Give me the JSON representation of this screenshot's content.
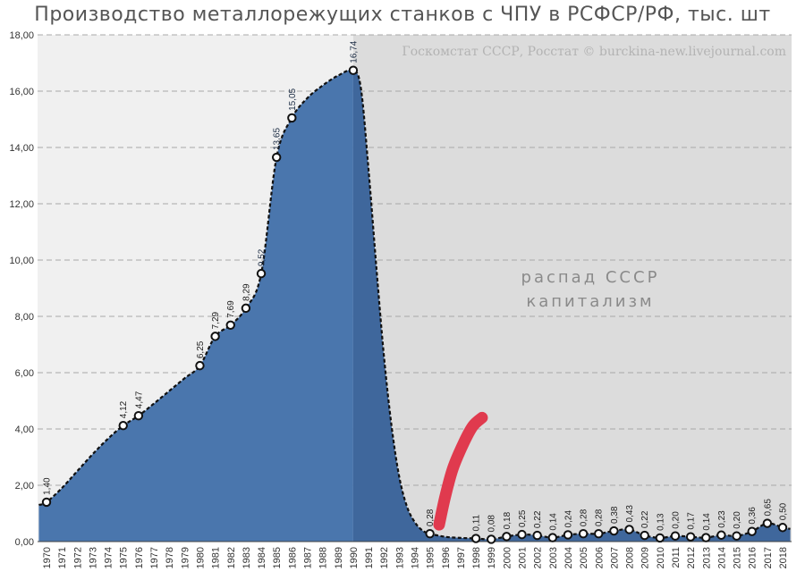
{
  "chart_data": {
    "type": "area",
    "title": "Производство металлорежущих станков с ЧПУ в РСФСР/РФ, тыс. шт",
    "source": "Госкомстат СССР, Росстат © burckina-new.livejournal.com",
    "annotations": [
      "распад СССР",
      "капитализм"
    ],
    "ylim": [
      0,
      18
    ],
    "yticks": [
      "0,00",
      "2,00",
      "4,00",
      "6,00",
      "8,00",
      "10,00",
      "12,00",
      "14,00",
      "16,00",
      "18,00"
    ],
    "grid": true,
    "x": [
      "1970",
      "1971",
      "1972",
      "1973",
      "1974",
      "1975",
      "1976",
      "1977",
      "1978",
      "1979",
      "1980",
      "1981",
      "1982",
      "1983",
      "1984",
      "1985",
      "1986",
      "1987",
      "1988",
      "1989",
      "1990",
      "1991",
      "1992",
      "1993",
      "1994",
      "1995",
      "1996",
      "1997",
      "1998",
      "1999",
      "2000",
      "2001",
      "2002",
      "2003",
      "2004",
      "2005",
      "2006",
      "2007",
      "2008",
      "2009",
      "2010",
      "2011",
      "2012",
      "2013",
      "2014",
      "2015",
      "2016",
      "2017",
      "2018"
    ],
    "points": [
      {
        "year": "1970",
        "value": 1.4,
        "label": "1,40"
      },
      {
        "year": "1975",
        "value": 4.12,
        "label": "4,12"
      },
      {
        "year": "1976",
        "value": 4.47,
        "label": "4,47"
      },
      {
        "year": "1980",
        "value": 6.25,
        "label": "6,25"
      },
      {
        "year": "1981",
        "value": 7.29,
        "label": "7,29"
      },
      {
        "year": "1982",
        "value": 7.69,
        "label": "7,69"
      },
      {
        "year": "1983",
        "value": 8.29,
        "label": "8,29"
      },
      {
        "year": "1984",
        "value": 9.52,
        "label": "9,52"
      },
      {
        "year": "1985",
        "value": 13.65,
        "label": "13,65"
      },
      {
        "year": "1986",
        "value": 15.05,
        "label": "15,05"
      },
      {
        "year": "1990",
        "value": 16.74,
        "label": "16,74"
      },
      {
        "year": "1995",
        "value": 0.28,
        "label": "0,28"
      },
      {
        "year": "1998",
        "value": 0.11,
        "label": "0,11"
      },
      {
        "year": "1999",
        "value": 0.08,
        "label": "0,08"
      },
      {
        "year": "2000",
        "value": 0.18,
        "label": "0,18"
      },
      {
        "year": "2001",
        "value": 0.25,
        "label": "0,25"
      },
      {
        "year": "2002",
        "value": 0.22,
        "label": "0,22"
      },
      {
        "year": "2003",
        "value": 0.14,
        "label": "0,14"
      },
      {
        "year": "2004",
        "value": 0.24,
        "label": "0,24"
      },
      {
        "year": "2005",
        "value": 0.28,
        "label": "0,28"
      },
      {
        "year": "2006",
        "value": 0.28,
        "label": "0,28"
      },
      {
        "year": "2007",
        "value": 0.38,
        "label": "0,38"
      },
      {
        "year": "2008",
        "value": 0.43,
        "label": "0,43"
      },
      {
        "year": "2009",
        "value": 0.22,
        "label": "0,22"
      },
      {
        "year": "2010",
        "value": 0.13,
        "label": "0,13"
      },
      {
        "year": "2011",
        "value": 0.2,
        "label": "0,20"
      },
      {
        "year": "2012",
        "value": 0.17,
        "label": "0,17"
      },
      {
        "year": "2013",
        "value": 0.14,
        "label": "0,14"
      },
      {
        "year": "2014",
        "value": 0.23,
        "label": "0,23"
      },
      {
        "year": "2015",
        "value": 0.2,
        "label": "0,20"
      },
      {
        "year": "2016",
        "value": 0.36,
        "label": "0,36"
      },
      {
        "year": "2017",
        "value": 0.65,
        "label": "0,65"
      },
      {
        "year": "2018",
        "value": 0.5,
        "label": "0,50"
      }
    ],
    "curve": [
      {
        "year": 1969.5,
        "value": 1.3
      },
      {
        "year": 1970,
        "value": 1.4
      },
      {
        "year": 1971,
        "value": 1.9
      },
      {
        "year": 1972,
        "value": 2.5
      },
      {
        "year": 1973,
        "value": 3.1
      },
      {
        "year": 1974,
        "value": 3.65
      },
      {
        "year": 1975,
        "value": 4.12
      },
      {
        "year": 1976,
        "value": 4.47
      },
      {
        "year": 1977,
        "value": 4.9
      },
      {
        "year": 1978,
        "value": 5.35
      },
      {
        "year": 1979,
        "value": 5.8
      },
      {
        "year": 1980,
        "value": 6.25
      },
      {
        "year": 1981,
        "value": 7.29
      },
      {
        "year": 1982,
        "value": 7.69
      },
      {
        "year": 1983,
        "value": 8.29
      },
      {
        "year": 1984,
        "value": 9.52
      },
      {
        "year": 1985,
        "value": 13.65
      },
      {
        "year": 1986,
        "value": 15.05
      },
      {
        "year": 1987,
        "value": 15.75
      },
      {
        "year": 1988,
        "value": 16.2
      },
      {
        "year": 1989,
        "value": 16.55
      },
      {
        "year": 1990,
        "value": 16.74
      },
      {
        "year": 1990.5,
        "value": 16.1
      },
      {
        "year": 1991,
        "value": 13.2
      },
      {
        "year": 1991.5,
        "value": 9.8
      },
      {
        "year": 1992,
        "value": 6.6
      },
      {
        "year": 1992.5,
        "value": 4.1
      },
      {
        "year": 1993,
        "value": 2.3
      },
      {
        "year": 1993.5,
        "value": 1.25
      },
      {
        "year": 1994,
        "value": 0.7
      },
      {
        "year": 1994.5,
        "value": 0.4
      },
      {
        "year": 1995,
        "value": 0.28
      },
      {
        "year": 1996,
        "value": 0.17
      },
      {
        "year": 1997,
        "value": 0.13
      },
      {
        "year": 1998,
        "value": 0.11
      },
      {
        "year": 1999,
        "value": 0.08
      },
      {
        "year": 2000,
        "value": 0.18
      },
      {
        "year": 2001,
        "value": 0.25
      },
      {
        "year": 2002,
        "value": 0.22
      },
      {
        "year": 2003,
        "value": 0.14
      },
      {
        "year": 2004,
        "value": 0.24
      },
      {
        "year": 2005,
        "value": 0.28
      },
      {
        "year": 2006,
        "value": 0.28
      },
      {
        "year": 2007,
        "value": 0.38
      },
      {
        "year": 2008,
        "value": 0.43
      },
      {
        "year": 2009,
        "value": 0.22
      },
      {
        "year": 2010,
        "value": 0.13
      },
      {
        "year": 2011,
        "value": 0.2
      },
      {
        "year": 2012,
        "value": 0.17
      },
      {
        "year": 2013,
        "value": 0.14
      },
      {
        "year": 2014,
        "value": 0.23
      },
      {
        "year": 2015,
        "value": 0.2
      },
      {
        "year": 2016,
        "value": 0.36
      },
      {
        "year": 2017,
        "value": 0.65
      },
      {
        "year": 2018,
        "value": 0.5
      },
      {
        "year": 2018.5,
        "value": 0.45
      }
    ],
    "shaded_region_start_year": 1990,
    "red_stroke": [
      {
        "year": 1995.6,
        "value": 0.6
      },
      {
        "year": 1996.0,
        "value": 1.6
      },
      {
        "year": 1996.5,
        "value": 2.6
      },
      {
        "year": 1997.2,
        "value": 3.5
      },
      {
        "year": 1997.8,
        "value": 4.1
      },
      {
        "year": 1998.4,
        "value": 4.4
      }
    ],
    "colors": {
      "area": "#4a76ad",
      "area_shaded": "#3f679c",
      "plot_bg": "#f0f0f0",
      "shaded_bg": "#dcdcdc",
      "grid": "#a8a8a8",
      "line": "#111111",
      "marker_fill": "#ffffff",
      "red_stroke": "#e03a4e"
    }
  }
}
